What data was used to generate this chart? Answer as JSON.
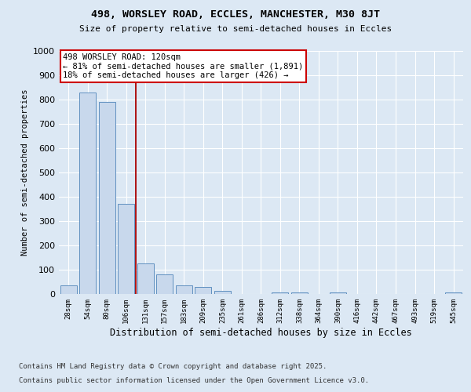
{
  "title1": "498, WORSLEY ROAD, ECCLES, MANCHESTER, M30 8JT",
  "title2": "Size of property relative to semi-detached houses in Eccles",
  "xlabel": "Distribution of semi-detached houses by size in Eccles",
  "ylabel": "Number of semi-detached properties",
  "categories": [
    "28sqm",
    "54sqm",
    "80sqm",
    "106sqm",
    "131sqm",
    "157sqm",
    "183sqm",
    "209sqm",
    "235sqm",
    "261sqm",
    "286sqm",
    "312sqm",
    "338sqm",
    "364sqm",
    "390sqm",
    "416sqm",
    "442sqm",
    "467sqm",
    "493sqm",
    "519sqm",
    "545sqm"
  ],
  "values": [
    35,
    830,
    790,
    370,
    125,
    82,
    35,
    30,
    12,
    0,
    0,
    8,
    8,
    0,
    8,
    0,
    0,
    0,
    0,
    0,
    5
  ],
  "bar_color": "#c8d8ec",
  "bar_edge_color": "#6090c0",
  "vline_color": "#aa0000",
  "vline_x": 3.5,
  "annotation_text": "498 WORSLEY ROAD: 120sqm\n← 81% of semi-detached houses are smaller (1,891)\n18% of semi-detached houses are larger (426) →",
  "annotation_box_color": "#ffffff",
  "annotation_border_color": "#cc0000",
  "bg_color": "#dce8f4",
  "plot_bg_color": "#dce8f4",
  "grid_color": "#ffffff",
  "ylim": [
    0,
    1000
  ],
  "yticks": [
    0,
    100,
    200,
    300,
    400,
    500,
    600,
    700,
    800,
    900,
    1000
  ],
  "footnote1": "Contains HM Land Registry data © Crown copyright and database right 2025.",
  "footnote2": "Contains public sector information licensed under the Open Government Licence v3.0."
}
